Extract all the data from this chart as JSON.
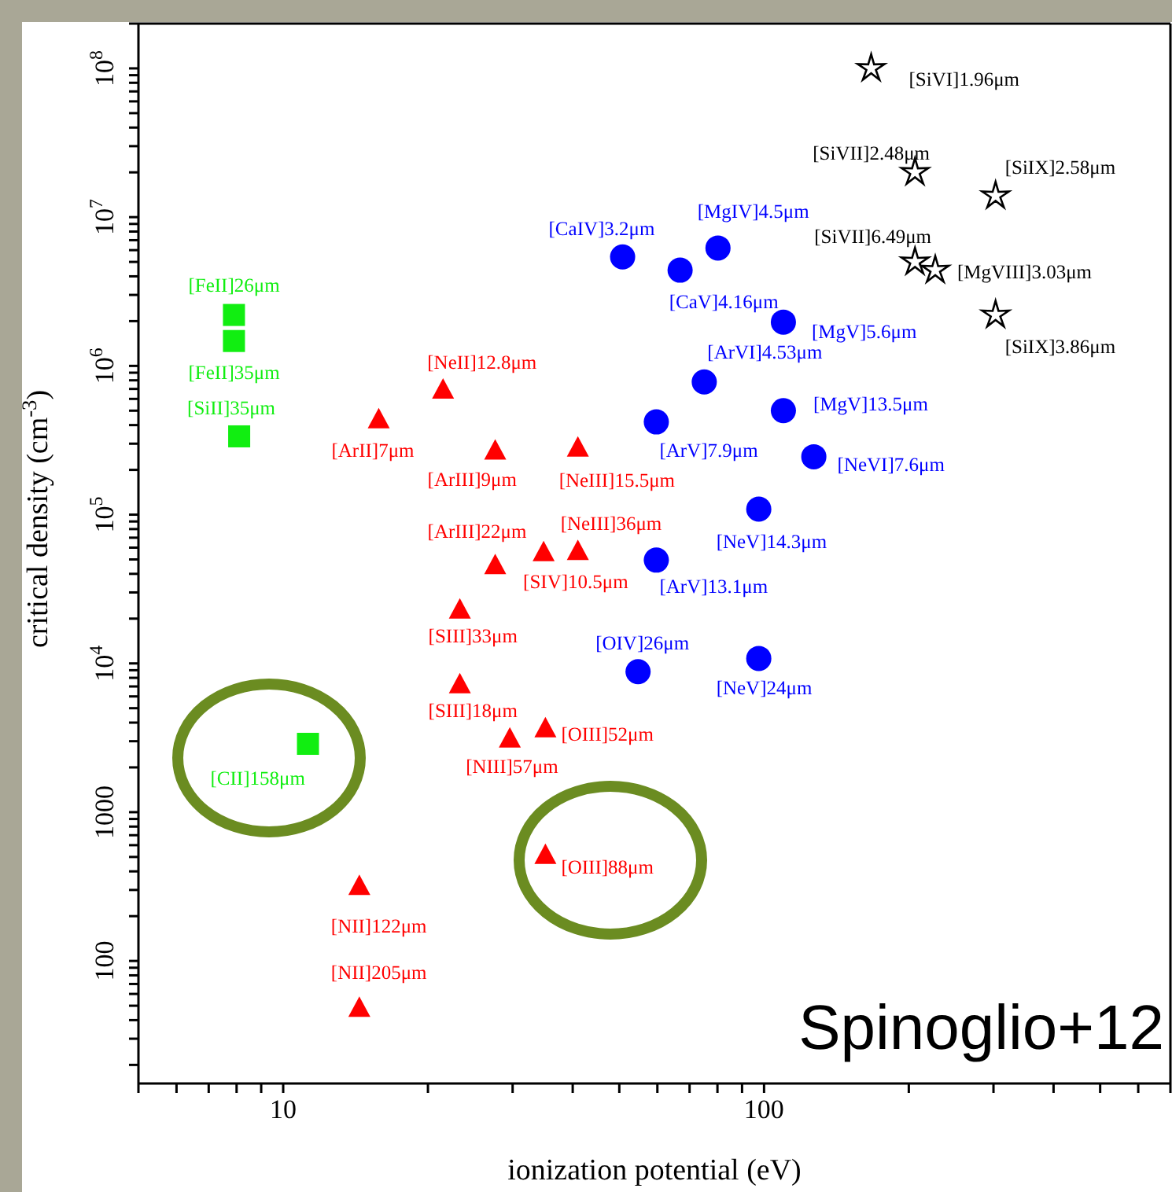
{
  "chart_data": {
    "type": "scatter",
    "xlabel": "ionization potential (eV)",
    "ylabel": "critical density (cm$^{-3}$)",
    "log": "xy",
    "xlim": [
      5,
      700
    ],
    "xticks": [
      {
        "value": 5,
        "label": null
      },
      {
        "value": 6,
        "label": null
      },
      {
        "value": 7,
        "label": null
      },
      {
        "value": 8,
        "label": null
      },
      {
        "value": 9,
        "label": null
      },
      10,
      {
        "value": 20,
        "label": null
      },
      {
        "value": 30,
        "label": null
      },
      {
        "value": 40,
        "label": null
      },
      {
        "value": 50,
        "label": null
      },
      {
        "value": 60,
        "label": null
      },
      {
        "value": 70,
        "label": null
      },
      {
        "value": 80,
        "label": null
      },
      {
        "value": 90,
        "label": null
      },
      100,
      {
        "value": 200,
        "label": null
      },
      {
        "value": 300,
        "label": null
      },
      {
        "value": 400,
        "label": null
      },
      {
        "value": 500,
        "label": null
      },
      {
        "value": 600,
        "label": null
      },
      {
        "value": 700,
        "label": null
      }
    ],
    "ylim": [
      15,
      200000000
    ],
    "yticks": [
      {
        "value": 20,
        "label": null
      },
      {
        "value": 30,
        "label": null
      },
      {
        "value": 40,
        "label": null
      },
      {
        "value": 50,
        "label": null
      },
      {
        "value": 60,
        "label": null
      },
      {
        "value": 70,
        "label": null
      },
      {
        "value": 80,
        "label": null
      },
      {
        "value": 90,
        "label": null
      },
      100,
      {
        "value": 200,
        "label": null
      },
      {
        "value": 300,
        "label": null
      },
      {
        "value": 400,
        "label": null
      },
      {
        "value": 500,
        "label": null
      },
      {
        "value": 600,
        "label": null
      },
      {
        "value": 700,
        "label": null
      },
      {
        "value": 800,
        "label": null
      },
      {
        "value": 900,
        "label": null
      },
      1000,
      {
        "value": 2000,
        "label": null
      },
      {
        "value": 3000,
        "label": null
      },
      {
        "value": 4000,
        "label": null
      },
      {
        "value": 5000,
        "label": null
      },
      {
        "value": 6000,
        "label": null
      },
      {
        "value": 7000,
        "label": null
      },
      {
        "value": 8000,
        "label": null
      },
      {
        "value": 9000,
        "label": null
      },
      {
        "value": 10000,
        "label": "10$^{4}$"
      },
      {
        "value": 20000,
        "label": null
      },
      {
        "value": 30000,
        "label": null
      },
      {
        "value": 40000,
        "label": null
      },
      {
        "value": 50000,
        "label": null
      },
      {
        "value": 60000,
        "label": null
      },
      {
        "value": 70000,
        "label": null
      },
      {
        "value": 80000,
        "label": null
      },
      {
        "value": 90000,
        "label": null
      },
      {
        "value": 100000,
        "label": "10$^{5}$"
      },
      {
        "value": 200000,
        "label": null
      },
      {
        "value": 300000,
        "label": null
      },
      {
        "value": 400000,
        "label": null
      },
      {
        "value": 500000,
        "label": null
      },
      {
        "value": 600000,
        "label": null
      },
      {
        "value": 700000,
        "label": null
      },
      {
        "value": 800000,
        "label": null
      },
      {
        "value": 900000,
        "label": null
      },
      {
        "value": 1000000,
        "label": "10$^{6}$"
      },
      {
        "value": 2000000,
        "label": null
      },
      {
        "value": 3000000,
        "label": null
      },
      {
        "value": 4000000,
        "label": null
      },
      {
        "value": 5000000,
        "label": null
      },
      {
        "value": 6000000,
        "label": null
      },
      {
        "value": 7000000,
        "label": null
      },
      {
        "value": 8000000,
        "label": null
      },
      {
        "value": 9000000,
        "label": null
      },
      {
        "value": 10000000,
        "label": "10$^{7}$"
      },
      {
        "value": 20000000,
        "label": null
      },
      {
        "value": 30000000,
        "label": null
      },
      {
        "value": 40000000,
        "label": null
      },
      {
        "value": 50000000,
        "label": null
      },
      {
        "value": 60000000,
        "label": null
      },
      {
        "value": 70000000,
        "label": null
      },
      {
        "value": 80000000,
        "label": null
      },
      {
        "value": 90000000,
        "label": null
      },
      {
        "value": 100000000,
        "label": "10$^{8}$"
      },
      {
        "value": 200000000,
        "label": null
      }
    ],
    "series": [
      {
        "marker": "square",
        "color": "#11ee11",
        "x": [
          7.9,
          7.9,
          8.1,
          11.26
        ],
        "values": [
          2200000,
          1470000,
          336000,
          2880
        ]
      },
      {
        "marker": "triangle",
        "color": "#ff0000",
        "x": [
          21.5,
          15.8,
          27.6,
          41,
          27.6,
          34.8,
          41,
          23.3,
          23.3,
          29.6,
          35.1,
          35.1,
          14.4,
          14.4
        ],
        "values": [
          680000,
          430000,
          265000,
          277000,
          45000,
          55000,
          56000,
          22600,
          7100,
          3070,
          3600,
          507,
          313,
          47.5
        ]
      },
      {
        "marker": "circle",
        "color": "#0000ff",
        "x": [
          50.8,
          66.9,
          80.2,
          109.7,
          75.1,
          109.7,
          59.7,
          126.9,
          97.5,
          59.7,
          54.7,
          97.5
        ],
        "values": [
          5400000,
          4400000,
          6200000,
          1970000,
          780000,
          500000,
          420000,
          245000,
          109000,
          49500,
          8800,
          10800
        ]
      },
      {
        "marker": "star",
        "color": "#000000",
        "x": [
          167,
          206,
          303,
          206,
          227,
          303
        ],
        "values": [
          100000000,
          20000000,
          13900000,
          5000000,
          4400000,
          2200000
        ]
      }
    ],
    "annotations": [
      {
        "text": "[FeII]26μm",
        "x": 7.9,
        "y": 2200000
      },
      {
        "text": "[FeII]35μm",
        "x": 7.9,
        "y": 1470000
      },
      {
        "text": "[SiII]35μm",
        "x": 8.1,
        "y": 336000
      },
      {
        "text": "[CII]158μm",
        "x": 11.26,
        "y": 2880
      },
      {
        "text": "[NeII]12.8μm",
        "x": 21.5,
        "y": 680000
      },
      {
        "text": "[ArII]7μm",
        "x": 15.8,
        "y": 430000
      },
      {
        "text": "[ArIII]9μm",
        "x": 27.6,
        "y": 265000
      },
      {
        "text": "[NeIII]15.5μm",
        "x": 41,
        "y": 277000
      },
      {
        "text": "[ArIII]22μm",
        "x": 27.6,
        "y": 45000
      },
      {
        "text": "[SIV]10.5μm",
        "x": 34.8,
        "y": 55000
      },
      {
        "text": "[NeIII]36μm",
        "x": 41,
        "y": 56000
      },
      {
        "text": "[SIII]33μm",
        "x": 23.3,
        "y": 22600
      },
      {
        "text": "[SIII]18μm",
        "x": 23.3,
        "y": 7100
      },
      {
        "text": "[NIII]57μm",
        "x": 29.6,
        "y": 3070
      },
      {
        "text": "[OIII]52μm",
        "x": 35.1,
        "y": 3600
      },
      {
        "text": "[OIII]88μm",
        "x": 35.1,
        "y": 507
      },
      {
        "text": "[NII]122μm",
        "x": 14.4,
        "y": 313
      },
      {
        "text": "[NII]205μm",
        "x": 14.4,
        "y": 47.5
      },
      {
        "text": "[CaIV]3.2μm",
        "x": 50.8,
        "y": 5400000
      },
      {
        "text": "[CaV]4.16μm",
        "x": 66.9,
        "y": 4400000
      },
      {
        "text": "[MgIV]4.5μm",
        "x": 80.2,
        "y": 6200000
      },
      {
        "text": "[MgV]5.6μm",
        "x": 109.7,
        "y": 1970000
      },
      {
        "text": "[ArVI]4.53μm",
        "x": 75.1,
        "y": 780000
      },
      {
        "text": "[MgV]13.5μm",
        "x": 109.7,
        "y": 500000
      },
      {
        "text": "[ArV]7.9μm",
        "x": 59.7,
        "y": 420000
      },
      {
        "text": "[NeVI]7.6μm",
        "x": 126.9,
        "y": 245000
      },
      {
        "text": "[NeV]14.3μm",
        "x": 97.5,
        "y": 109000
      },
      {
        "text": "[ArV]13.1μm",
        "x": 59.7,
        "y": 49500
      },
      {
        "text": "[OIV]26μm",
        "x": 54.7,
        "y": 8800
      },
      {
        "text": "[NeV]24μm",
        "x": 97.5,
        "y": 10800
      },
      {
        "text": "[SiVI]1.96μm",
        "x": 167,
        "y": 100000000
      },
      {
        "text": "[SiVII]2.48μm",
        "x": 206,
        "y": 20000000
      },
      {
        "text": "[SiIX]2.58μm",
        "x": 303,
        "y": 13900000
      },
      {
        "text": "[SiVII]6.49μm",
        "x": 206,
        "y": 5000000
      },
      {
        "text": "[MgVIII]3.03μm",
        "x": 227,
        "y": 4400000
      },
      {
        "text": "[SiIX]3.86μm",
        "x": 303,
        "y": 2200000
      },
      "Spinoglio+12"
    ]
  }
}
